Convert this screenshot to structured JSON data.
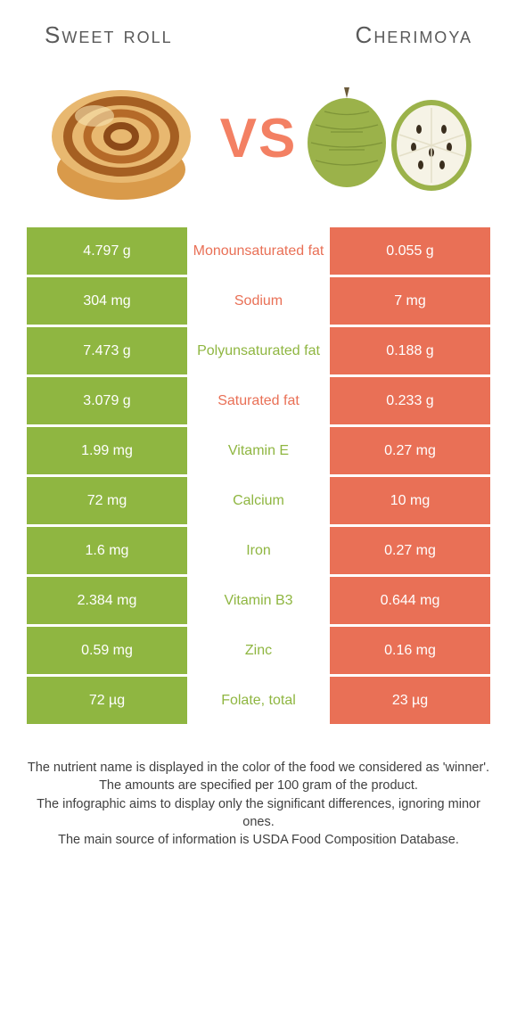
{
  "colors": {
    "left": "#8fb641",
    "right": "#e97056",
    "vs": "#f38063",
    "title": "#595959",
    "footer": "#404040",
    "bg": "#ffffff"
  },
  "titles": {
    "left": "Sweet roll",
    "right": "Cherimoya"
  },
  "vs": "VS",
  "rows": [
    {
      "left": "4.797 g",
      "label": "Monounsaturated fat",
      "right": "0.055 g",
      "winner": "right"
    },
    {
      "left": "304 mg",
      "label": "Sodium",
      "right": "7 mg",
      "winner": "right"
    },
    {
      "left": "7.473 g",
      "label": "Polyunsaturated fat",
      "right": "0.188 g",
      "winner": "left"
    },
    {
      "left": "3.079 g",
      "label": "Saturated fat",
      "right": "0.233 g",
      "winner": "right"
    },
    {
      "left": "1.99 mg",
      "label": "Vitamin E",
      "right": "0.27 mg",
      "winner": "left"
    },
    {
      "left": "72 mg",
      "label": "Calcium",
      "right": "10 mg",
      "winner": "left"
    },
    {
      "left": "1.6 mg",
      "label": "Iron",
      "right": "0.27 mg",
      "winner": "left"
    },
    {
      "left": "2.384 mg",
      "label": "Vitamin B3",
      "right": "0.644 mg",
      "winner": "left"
    },
    {
      "left": "0.59 mg",
      "label": "Zinc",
      "right": "0.16 mg",
      "winner": "left"
    },
    {
      "left": "72 µg",
      "label": "Folate, total",
      "right": "23 µg",
      "winner": "left"
    }
  ],
  "footer": [
    "The nutrient name is displayed in the color of the food we considered as 'winner'.",
    "The amounts are specified per 100 gram of the product.",
    "The infographic aims to display only the significant differences, ignoring minor ones.",
    "The main source of information is USDA Food Composition Database."
  ]
}
